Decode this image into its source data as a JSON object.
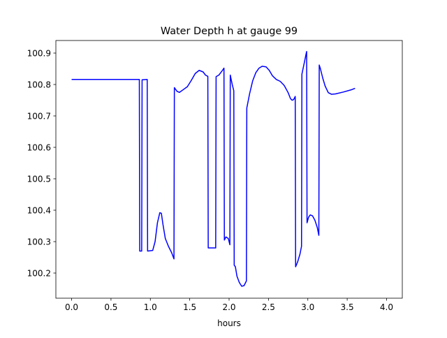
{
  "chart_data": {
    "type": "line",
    "title": "Water Depth h at gauge 99",
    "xlabel": "hours",
    "ylabel": "",
    "xlim": [
      -0.2,
      4.2
    ],
    "ylim": [
      100.12,
      100.94
    ],
    "x_ticks": [
      0.0,
      0.5,
      1.0,
      1.5,
      2.0,
      2.5,
      3.0,
      3.5,
      4.0
    ],
    "x_tick_labels": [
      "0.0",
      "0.5",
      "1.0",
      "1.5",
      "2.0",
      "2.5",
      "3.0",
      "3.5",
      "4.0"
    ],
    "y_ticks": [
      100.2,
      100.3,
      100.4,
      100.5,
      100.6,
      100.7,
      100.8,
      100.9
    ],
    "y_tick_labels": [
      "100.2",
      "100.3",
      "100.4",
      "100.5",
      "100.6",
      "100.7",
      "100.8",
      "100.9"
    ],
    "grid": false,
    "legend": "none",
    "series": [
      {
        "color": "#0000ff",
        "points": [
          [
            0.0,
            100.816
          ],
          [
            0.86,
            100.816
          ],
          [
            0.865,
            100.27
          ],
          [
            0.89,
            100.27
          ],
          [
            0.895,
            100.815
          ],
          [
            0.96,
            100.816
          ],
          [
            0.965,
            100.27
          ],
          [
            1.03,
            100.272
          ],
          [
            1.06,
            100.3
          ],
          [
            1.09,
            100.36
          ],
          [
            1.12,
            100.392
          ],
          [
            1.14,
            100.39
          ],
          [
            1.16,
            100.355
          ],
          [
            1.19,
            100.31
          ],
          [
            1.23,
            100.285
          ],
          [
            1.27,
            100.265
          ],
          [
            1.3,
            100.245
          ],
          [
            1.305,
            100.79
          ],
          [
            1.34,
            100.778
          ],
          [
            1.37,
            100.775
          ],
          [
            1.42,
            100.784
          ],
          [
            1.47,
            100.793
          ],
          [
            1.52,
            100.813
          ],
          [
            1.57,
            100.835
          ],
          [
            1.62,
            100.845
          ],
          [
            1.67,
            100.84
          ],
          [
            1.7,
            100.83
          ],
          [
            1.73,
            100.826
          ],
          [
            1.735,
            100.28
          ],
          [
            1.83,
            100.28
          ],
          [
            1.835,
            100.825
          ],
          [
            1.87,
            100.83
          ],
          [
            1.91,
            100.843
          ],
          [
            1.935,
            100.852
          ],
          [
            1.94,
            100.305
          ],
          [
            1.96,
            100.315
          ],
          [
            1.99,
            100.31
          ],
          [
            2.01,
            100.29
          ],
          [
            2.015,
            100.83
          ],
          [
            2.04,
            100.8
          ],
          [
            2.06,
            100.78
          ],
          [
            2.065,
            100.225
          ],
          [
            2.08,
            100.22
          ],
          [
            2.1,
            100.19
          ],
          [
            2.13,
            100.17
          ],
          [
            2.16,
            100.158
          ],
          [
            2.19,
            100.16
          ],
          [
            2.22,
            100.175
          ],
          [
            2.225,
            100.725
          ],
          [
            2.26,
            100.77
          ],
          [
            2.3,
            100.812
          ],
          [
            2.34,
            100.838
          ],
          [
            2.38,
            100.852
          ],
          [
            2.42,
            100.858
          ],
          [
            2.47,
            100.856
          ],
          [
            2.51,
            100.845
          ],
          [
            2.55,
            100.828
          ],
          [
            2.6,
            100.816
          ],
          [
            2.65,
            100.81
          ],
          [
            2.7,
            100.797
          ],
          [
            2.75,
            100.774
          ],
          [
            2.78,
            100.755
          ],
          [
            2.8,
            100.75
          ],
          [
            2.82,
            100.752
          ],
          [
            2.84,
            100.762
          ],
          [
            2.845,
            100.22
          ],
          [
            2.87,
            100.235
          ],
          [
            2.9,
            100.26
          ],
          [
            2.92,
            100.285
          ],
          [
            2.925,
            100.833
          ],
          [
            2.96,
            100.875
          ],
          [
            2.98,
            100.9
          ],
          [
            2.985,
            100.905
          ],
          [
            2.99,
            100.36
          ],
          [
            3.01,
            100.378
          ],
          [
            3.03,
            100.385
          ],
          [
            3.06,
            100.382
          ],
          [
            3.09,
            100.368
          ],
          [
            3.12,
            100.345
          ],
          [
            3.14,
            100.32
          ],
          [
            3.145,
            100.862
          ],
          [
            3.16,
            100.85
          ],
          [
            3.19,
            100.82
          ],
          [
            3.22,
            100.795
          ],
          [
            3.26,
            100.774
          ],
          [
            3.3,
            100.769
          ],
          [
            3.35,
            100.77
          ],
          [
            3.45,
            100.776
          ],
          [
            3.55,
            100.783
          ],
          [
            3.6,
            100.788
          ]
        ]
      }
    ]
  }
}
